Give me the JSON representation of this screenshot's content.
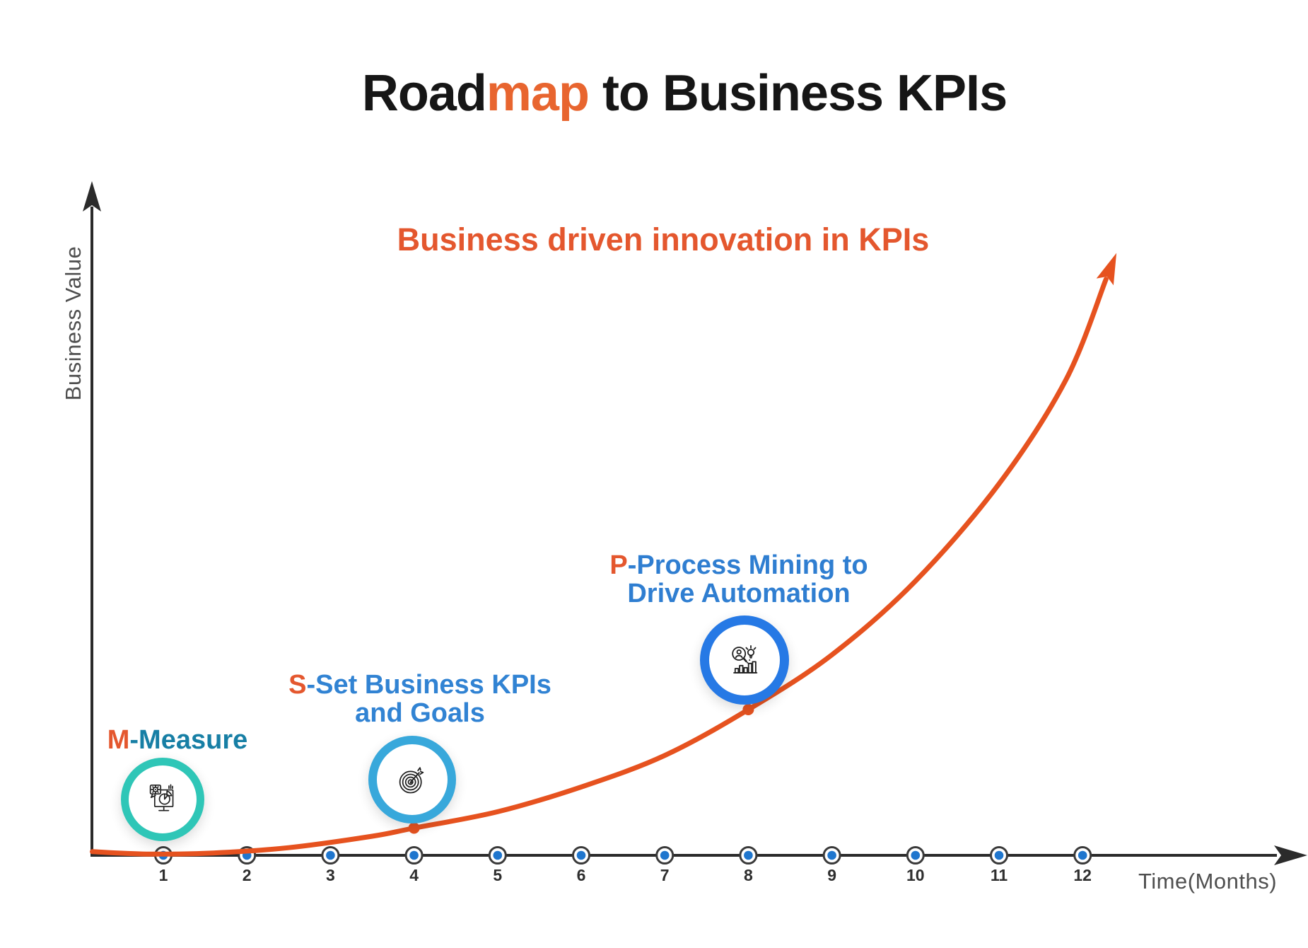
{
  "title": {
    "prefix": "Road",
    "highlight": "map",
    "suffix": " to Business KPIs"
  },
  "subtitle": "Business driven innovation in KPIs",
  "axes": {
    "x_label": "Time(Months)",
    "y_label": "Business Value",
    "months": [
      "1",
      "2",
      "3",
      "4",
      "5",
      "6",
      "7",
      "8",
      "9",
      "10",
      "11",
      "12"
    ]
  },
  "milestones": [
    {
      "prefix": "M",
      "rest": "-Measure",
      "line2": "",
      "month": 1,
      "icon": "measure-analytics-icon",
      "ring_color": "#2FC6B7",
      "text_color": "#177FA5"
    },
    {
      "prefix": "S",
      "rest": "-Set Business KPIs",
      "line2": "and Goals",
      "month": 4,
      "icon": "target-goal-icon",
      "ring_color": "#38A8DB",
      "text_color": "#3183D3"
    },
    {
      "prefix": "P",
      "rest": "-Process Mining to",
      "line2": "Drive Automation",
      "month": 8,
      "icon": "process-mining-icon",
      "ring_color": "#2679E5",
      "text_color": "#2F7ED1"
    }
  ],
  "colors": {
    "accent_orange": "#E4572E",
    "title_orange": "#E8652F",
    "title_black": "#161616",
    "curve_orange": "#E6521F",
    "axis_line": "#2B2B2B",
    "axis_text": "#2E2E2E",
    "muted_label": "#4F4F4F",
    "marker_ring": "#3A3A3A",
    "marker_dot_blue": "#1F76CE",
    "icon_stroke": "#1F1F1F"
  },
  "chart_data": {
    "type": "line",
    "title": "Roadmap to Business KPIs",
    "annotation": "Business driven innovation in KPIs",
    "xlabel": "Time(Months)",
    "ylabel": "Business Value",
    "x_ticks": [
      1,
      2,
      3,
      4,
      5,
      6,
      7,
      8,
      9,
      10,
      11,
      12
    ],
    "xlim": [
      0,
      13
    ],
    "ylim": [
      0,
      100
    ],
    "grid": false,
    "legend": false,
    "y_axis_numeric_labels": false,
    "series": [
      {
        "name": "Business value growth (exponential)",
        "shape": "exponential",
        "x": [
          0.15,
          0.8,
          1.6,
          2.5,
          3.5,
          4.0,
          5.0,
          6.0,
          7.0,
          8.0,
          9.0,
          10.0,
          11.0,
          11.8,
          12.28
        ],
        "y": [
          0.65,
          0.3,
          0.45,
          1.25,
          2.95,
          4.17,
          6.6,
          10.3,
          15.0,
          21.84,
          30.0,
          41.0,
          55.5,
          71.0,
          86.0
        ]
      }
    ],
    "curve_markers": [
      {
        "x": 4,
        "y": 4.17,
        "label": "S-Set Business KPIs and Goals"
      },
      {
        "x": 8,
        "y": 21.84,
        "label": "P-Process Mining to Drive Automation"
      }
    ],
    "milestone_annotations": [
      {
        "month": 1,
        "text": "M-Measure"
      },
      {
        "month": 4,
        "text": "S-Set Business KPIs and Goals"
      },
      {
        "month": 8,
        "text": "P-Process Mining to Drive Automation"
      }
    ]
  }
}
